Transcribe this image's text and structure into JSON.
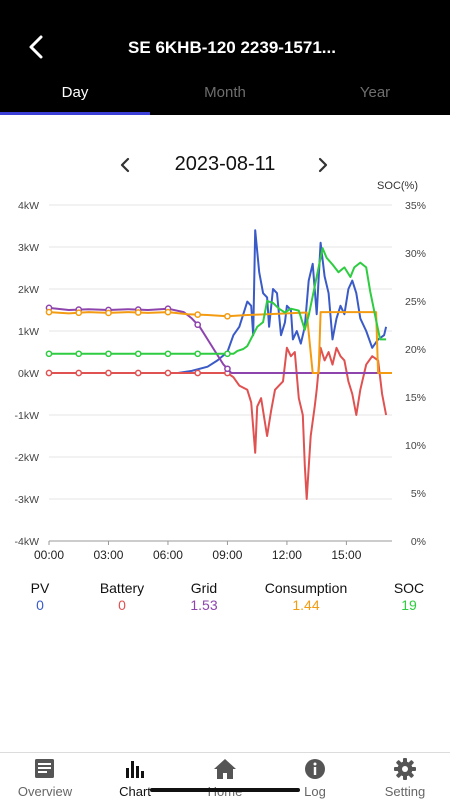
{
  "header": {
    "title": "SE 6KHB-120 2239-1571...",
    "tabs": [
      {
        "label": "Day",
        "active": true
      },
      {
        "label": "Month",
        "active": false
      },
      {
        "label": "Year",
        "active": false
      }
    ]
  },
  "date": {
    "value": "2023-08-11"
  },
  "legend": [
    {
      "name": "PV",
      "value": "0",
      "color": "#3a5bc7"
    },
    {
      "name": "Battery",
      "value": "0",
      "color": "#e05252"
    },
    {
      "name": "Grid",
      "value": "1.53",
      "color": "#8e44ad"
    },
    {
      "name": "Consumption",
      "value": "1.44",
      "color": "#f39c12"
    },
    {
      "name": "SOC",
      "value": "19",
      "color": "#2ecc40"
    }
  ],
  "nav": [
    {
      "label": "Overview",
      "icon": "document-icon",
      "active": false
    },
    {
      "label": "Chart",
      "icon": "bar-chart-icon",
      "active": true
    },
    {
      "label": "Home",
      "icon": "home-icon",
      "active": false
    },
    {
      "label": "Log",
      "icon": "info-icon",
      "active": false
    },
    {
      "label": "Setting",
      "icon": "gear-icon",
      "active": false
    }
  ],
  "chart_data": {
    "type": "line",
    "y_right_title": "SOC(%)",
    "y_left_ticks": [
      "4kW",
      "3kW",
      "2kW",
      "1kW",
      "0kW",
      "-1kW",
      "-2kW",
      "-3kW",
      "-4kW"
    ],
    "y_right_ticks": [
      "35%",
      "30%",
      "25%",
      "20%",
      "15%",
      "10%",
      "5%",
      "0%"
    ],
    "x_ticks": [
      "00:00",
      "03:00",
      "06:00",
      "09:00",
      "12:00",
      "15:00"
    ],
    "y_left_range": [
      -4,
      4
    ],
    "y_right_range": [
      0,
      35
    ],
    "x_range_hours": [
      0,
      17.3
    ],
    "series": [
      {
        "name": "PV",
        "axis": "left",
        "color": "#3a5bc7",
        "points": [
          [
            0,
            0
          ],
          [
            6.5,
            0
          ],
          [
            7.2,
            0.05
          ],
          [
            8.0,
            0.15
          ],
          [
            8.5,
            0.3
          ],
          [
            9.0,
            0.5
          ],
          [
            9.3,
            0.9
          ],
          [
            9.6,
            1.1
          ],
          [
            10.0,
            1.7
          ],
          [
            10.2,
            1.6
          ],
          [
            10.3,
            0.9
          ],
          [
            10.4,
            3.4
          ],
          [
            10.6,
            2.4
          ],
          [
            10.8,
            1.9
          ],
          [
            11.0,
            1.8
          ],
          [
            11.1,
            1.1
          ],
          [
            11.3,
            2.0
          ],
          [
            11.5,
            1.9
          ],
          [
            11.7,
            0.9
          ],
          [
            11.9,
            1.2
          ],
          [
            12.0,
            1.6
          ],
          [
            12.2,
            1.5
          ],
          [
            12.3,
            0.8
          ],
          [
            12.5,
            1.0
          ],
          [
            12.7,
            0.7
          ],
          [
            12.9,
            1.1
          ],
          [
            13.1,
            2.2
          ],
          [
            13.3,
            2.6
          ],
          [
            13.5,
            1.4
          ],
          [
            13.7,
            3.1
          ],
          [
            13.9,
            2.3
          ],
          [
            14.1,
            1.9
          ],
          [
            14.3,
            0.8
          ],
          [
            14.5,
            1.3
          ],
          [
            14.7,
            1.6
          ],
          [
            14.9,
            1.4
          ],
          [
            15.1,
            2.0
          ],
          [
            15.3,
            2.2
          ],
          [
            15.5,
            1.9
          ],
          [
            15.7,
            1.3
          ],
          [
            16.0,
            1.0
          ],
          [
            16.3,
            0.6
          ],
          [
            16.6,
            0.8
          ],
          [
            16.9,
            0.9
          ],
          [
            17.0,
            1.1
          ]
        ]
      },
      {
        "name": "Battery",
        "axis": "left",
        "color": "#e05252",
        "points": [
          [
            0,
            0
          ],
          [
            9.0,
            0
          ],
          [
            9.3,
            -0.1
          ],
          [
            9.6,
            -0.3
          ],
          [
            10.0,
            -0.4
          ],
          [
            10.2,
            -0.7
          ],
          [
            10.4,
            -1.9
          ],
          [
            10.5,
            -0.8
          ],
          [
            10.7,
            -0.6
          ],
          [
            10.8,
            -0.9
          ],
          [
            11.0,
            -1.5
          ],
          [
            11.2,
            -0.9
          ],
          [
            11.4,
            -0.4
          ],
          [
            11.6,
            -0.3
          ],
          [
            11.8,
            -0.2
          ],
          [
            12.0,
            0.6
          ],
          [
            12.2,
            0.4
          ],
          [
            12.4,
            0.5
          ],
          [
            12.6,
            -0.6
          ],
          [
            12.8,
            -1.0
          ],
          [
            12.9,
            -2.2
          ],
          [
            13.0,
            -3.0
          ],
          [
            13.2,
            -1.5
          ],
          [
            13.4,
            -0.8
          ],
          [
            13.5,
            -0.4
          ],
          [
            13.7,
            0.6
          ],
          [
            13.9,
            0.3
          ],
          [
            14.1,
            0.5
          ],
          [
            14.3,
            0.2
          ],
          [
            14.5,
            0.6
          ],
          [
            14.7,
            0.4
          ],
          [
            14.9,
            0.3
          ],
          [
            15.1,
            -0.2
          ],
          [
            15.3,
            -0.5
          ],
          [
            15.5,
            -1.0
          ],
          [
            15.7,
            -0.4
          ],
          [
            16.0,
            0.2
          ],
          [
            16.3,
            0.4
          ],
          [
            16.6,
            0.3
          ],
          [
            16.8,
            -0.5
          ],
          [
            17.0,
            -1.0
          ]
        ]
      },
      {
        "name": "Grid",
        "axis": "left",
        "color": "#8e44ad",
        "points": [
          [
            0,
            1.55
          ],
          [
            1.0,
            1.5
          ],
          [
            2.0,
            1.52
          ],
          [
            3.0,
            1.5
          ],
          [
            4.0,
            1.52
          ],
          [
            5.0,
            1.5
          ],
          [
            6.0,
            1.53
          ],
          [
            6.8,
            1.45
          ],
          [
            7.2,
            1.3
          ],
          [
            7.6,
            1.1
          ],
          [
            8.0,
            0.8
          ],
          [
            8.4,
            0.5
          ],
          [
            8.8,
            0.2
          ],
          [
            9.2,
            0
          ],
          [
            17.3,
            0
          ]
        ]
      },
      {
        "name": "Consumption",
        "axis": "left",
        "color": "#f39c12",
        "points": [
          [
            0,
            1.45
          ],
          [
            1.0,
            1.42
          ],
          [
            2.0,
            1.45
          ],
          [
            3.0,
            1.43
          ],
          [
            4.0,
            1.45
          ],
          [
            5.0,
            1.43
          ],
          [
            6.0,
            1.45
          ],
          [
            7.0,
            1.4
          ],
          [
            8.0,
            1.38
          ],
          [
            9.0,
            1.35
          ],
          [
            10.0,
            1.38
          ],
          [
            11.0,
            1.4
          ],
          [
            12.0,
            1.42
          ],
          [
            13.0,
            1.44
          ],
          [
            13.3,
            0
          ],
          [
            13.6,
            0
          ],
          [
            13.7,
            1.45
          ],
          [
            16.5,
            1.45
          ],
          [
            16.6,
            0
          ],
          [
            17.3,
            0
          ]
        ]
      },
      {
        "name": "SOC",
        "axis": "right",
        "color": "#2ecc40",
        "points": [
          [
            0,
            19.5
          ],
          [
            9.0,
            19.5
          ],
          [
            9.3,
            19.5
          ],
          [
            9.5,
            19.8
          ],
          [
            9.8,
            20.0
          ],
          [
            10.0,
            20.3
          ],
          [
            10.3,
            21.5
          ],
          [
            10.5,
            22.3
          ],
          [
            10.8,
            22.8
          ],
          [
            11.0,
            25.0
          ],
          [
            11.3,
            24.8
          ],
          [
            11.6,
            24.2
          ],
          [
            11.9,
            23.8
          ],
          [
            12.2,
            24.2
          ],
          [
            12.6,
            24.0
          ],
          [
            12.9,
            22.0
          ],
          [
            13.1,
            23.5
          ],
          [
            13.3,
            25.5
          ],
          [
            13.6,
            28.5
          ],
          [
            13.8,
            30.5
          ],
          [
            14.0,
            29.5
          ],
          [
            14.3,
            28.8
          ],
          [
            14.6,
            28.0
          ],
          [
            14.9,
            28.5
          ],
          [
            15.2,
            27.5
          ],
          [
            15.4,
            28.5
          ],
          [
            15.7,
            29.0
          ],
          [
            16.0,
            28.5
          ],
          [
            16.2,
            26.0
          ],
          [
            16.5,
            23.0
          ],
          [
            16.7,
            21.0
          ],
          [
            17.0,
            21.0
          ]
        ]
      }
    ]
  }
}
